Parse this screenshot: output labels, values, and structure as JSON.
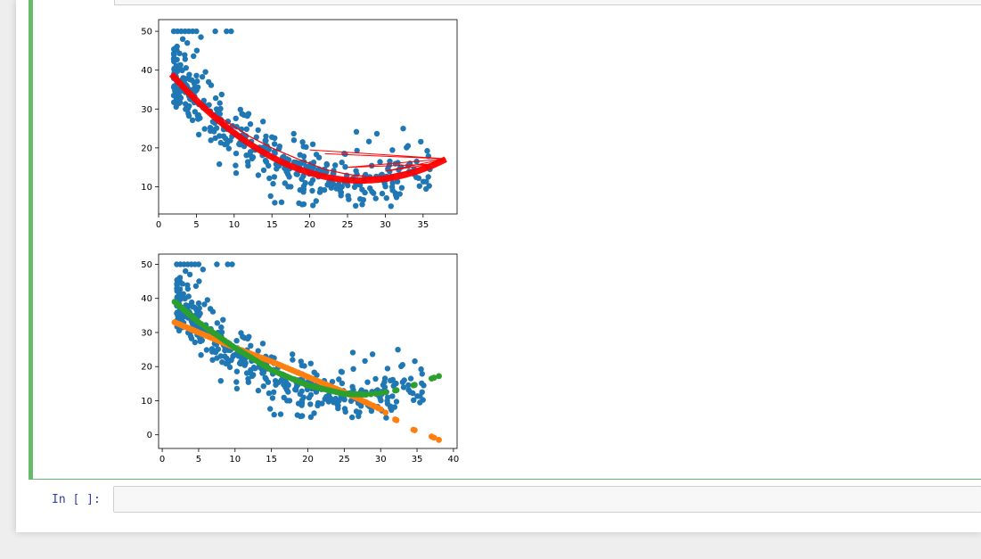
{
  "next_cell": {
    "prompt": "In [ ]:"
  },
  "chart_data": [
    {
      "type": "scatter",
      "title": "",
      "xlabel": "",
      "ylabel": "",
      "xlim": [
        0,
        39.5
      ],
      "ylim": [
        3,
        53
      ],
      "xticks": [
        0,
        5,
        10,
        15,
        20,
        25,
        30,
        35
      ],
      "yticks": [
        10,
        20,
        30,
        40,
        50
      ],
      "series": [
        {
          "kind": "scatter",
          "color": "#1f77b4",
          "description": "observed data points"
        },
        {
          "kind": "line",
          "color": "#ff0000",
          "description": "polynomial fit drawn over unsorted x values",
          "x": [
            1.7,
            3,
            5,
            8,
            10,
            12,
            15,
            18,
            20,
            22,
            25,
            28,
            30,
            33,
            36,
            38
          ],
          "y": [
            39,
            36,
            31.5,
            28,
            25.5,
            23,
            20,
            17.5,
            16,
            14.5,
            13.2,
            12.5,
            12.8,
            14,
            15.8,
            17.2
          ]
        }
      ]
    },
    {
      "type": "scatter",
      "title": "",
      "xlabel": "",
      "ylabel": "",
      "xlim": [
        -0.5,
        40.5
      ],
      "ylim": [
        -4,
        53
      ],
      "xticks": [
        0,
        5,
        10,
        15,
        20,
        25,
        30,
        35,
        40
      ],
      "yticks": [
        0,
        10,
        20,
        30,
        40,
        50
      ],
      "series": [
        {
          "kind": "scatter",
          "color": "#1f77b4",
          "description": "observed data points"
        },
        {
          "kind": "scatter",
          "color": "#ff7f0e",
          "description": "linear model predictions",
          "x": [
            1.7,
            5,
            10,
            15,
            20,
            25,
            30,
            32,
            34.5,
            37,
            38
          ],
          "y": [
            33,
            30,
            25.5,
            21.5,
            17,
            12.5,
            7.5,
            4.5,
            1.5,
            -0.5,
            -1.5
          ]
        },
        {
          "kind": "scatter",
          "color": "#2ca02c",
          "description": "quadratic model predictions",
          "x": [
            1.7,
            5,
            10,
            15,
            20,
            25,
            28,
            30,
            32,
            34.5,
            37,
            38
          ],
          "y": [
            39,
            33,
            25.5,
            19,
            14.5,
            12,
            11.8,
            12.2,
            13,
            14.5,
            16.5,
            17.2
          ]
        }
      ]
    }
  ]
}
